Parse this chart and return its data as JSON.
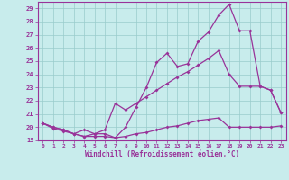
{
  "xlabel": "Windchill (Refroidissement éolien,°C)",
  "bg_color": "#c8ecec",
  "line_color": "#993399",
  "grid_color": "#99cccc",
  "xlim": [
    -0.5,
    23.5
  ],
  "ylim": [
    19,
    29.5
  ],
  "xticks": [
    0,
    1,
    2,
    3,
    4,
    5,
    6,
    7,
    8,
    9,
    10,
    11,
    12,
    13,
    14,
    15,
    16,
    17,
    18,
    19,
    20,
    21,
    22,
    23
  ],
  "yticks": [
    19,
    20,
    21,
    22,
    23,
    24,
    25,
    26,
    27,
    28,
    29
  ],
  "series1_x": [
    0,
    1,
    2,
    3,
    4,
    5,
    6,
    7,
    8,
    9,
    10,
    11,
    12,
    13,
    14,
    15,
    16,
    17,
    18,
    19,
    20,
    21,
    22,
    23
  ],
  "series1_y": [
    20.3,
    20.0,
    19.8,
    19.5,
    19.3,
    19.5,
    19.5,
    19.2,
    20.0,
    21.5,
    23.0,
    24.9,
    25.6,
    24.6,
    24.8,
    26.5,
    27.2,
    28.5,
    29.3,
    27.3,
    27.3,
    23.1,
    22.8,
    21.1
  ],
  "series2_x": [
    0,
    1,
    2,
    3,
    4,
    5,
    6,
    7,
    8,
    9,
    10,
    11,
    12,
    13,
    14,
    15,
    16,
    17,
    18,
    19,
    20,
    21,
    22,
    23
  ],
  "series2_y": [
    20.3,
    20.0,
    19.8,
    19.5,
    19.8,
    19.5,
    19.8,
    21.8,
    21.3,
    21.8,
    22.3,
    22.8,
    23.3,
    23.8,
    24.2,
    24.7,
    25.2,
    25.8,
    24.0,
    23.1,
    23.1,
    23.1,
    22.8,
    21.1
  ],
  "series3_x": [
    0,
    1,
    2,
    3,
    4,
    5,
    6,
    7,
    8,
    9,
    10,
    11,
    12,
    13,
    14,
    15,
    16,
    17,
    18,
    19,
    20,
    21,
    22,
    23
  ],
  "series3_y": [
    20.3,
    19.9,
    19.7,
    19.5,
    19.3,
    19.3,
    19.3,
    19.2,
    19.3,
    19.5,
    19.6,
    19.8,
    20.0,
    20.1,
    20.3,
    20.5,
    20.6,
    20.7,
    20.0,
    20.0,
    20.0,
    20.0,
    20.0,
    20.1
  ]
}
